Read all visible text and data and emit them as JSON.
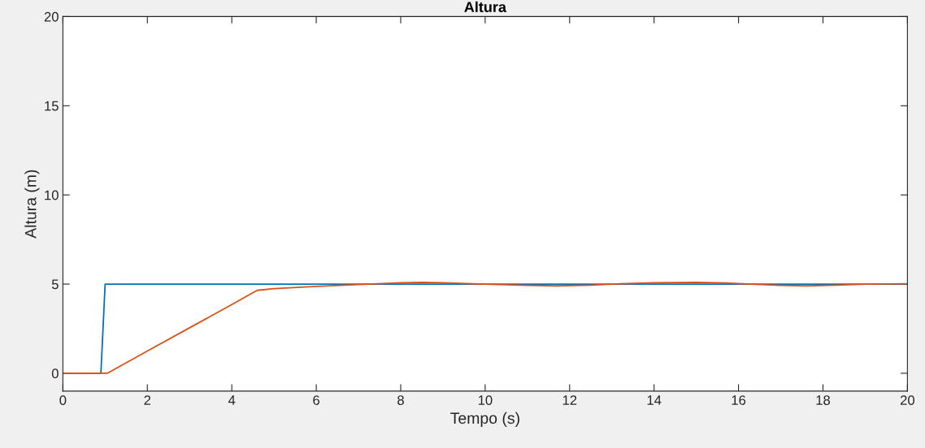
{
  "chart_data": {
    "type": "line",
    "title": "Altura",
    "xlabel": "Tempo (s)",
    "ylabel": "Altura (m)",
    "xlim": [
      0,
      20
    ],
    "ylim": [
      -1,
      20
    ],
    "xticks": [
      0,
      2,
      4,
      6,
      8,
      10,
      12,
      14,
      16,
      18,
      20
    ],
    "yticks": [
      0,
      5,
      10,
      15,
      20
    ],
    "grid": false,
    "marker": "none",
    "line_style": "solid",
    "series": [
      {
        "color": "#0072bd",
        "x": [
          0,
          0.9,
          1.0,
          20
        ],
        "values": [
          0,
          0,
          5,
          5
        ]
      },
      {
        "color": "#d95319",
        "x": [
          0,
          1.05,
          2,
          3,
          4,
          4.6,
          5,
          6,
          7,
          8,
          8.5,
          9,
          10,
          11,
          11.7,
          12.5,
          13,
          14,
          15,
          15.7,
          16.3,
          17,
          17.6,
          18.3,
          19,
          20
        ],
        "values": [
          0,
          0,
          1.25,
          2.55,
          3.85,
          4.65,
          4.75,
          4.87,
          4.97,
          5.07,
          5.1,
          5.07,
          5.0,
          4.93,
          4.9,
          4.94,
          5.0,
          5.07,
          5.1,
          5.06,
          5.0,
          4.93,
          4.9,
          4.94,
          5.0,
          5.02
        ]
      }
    ]
  }
}
